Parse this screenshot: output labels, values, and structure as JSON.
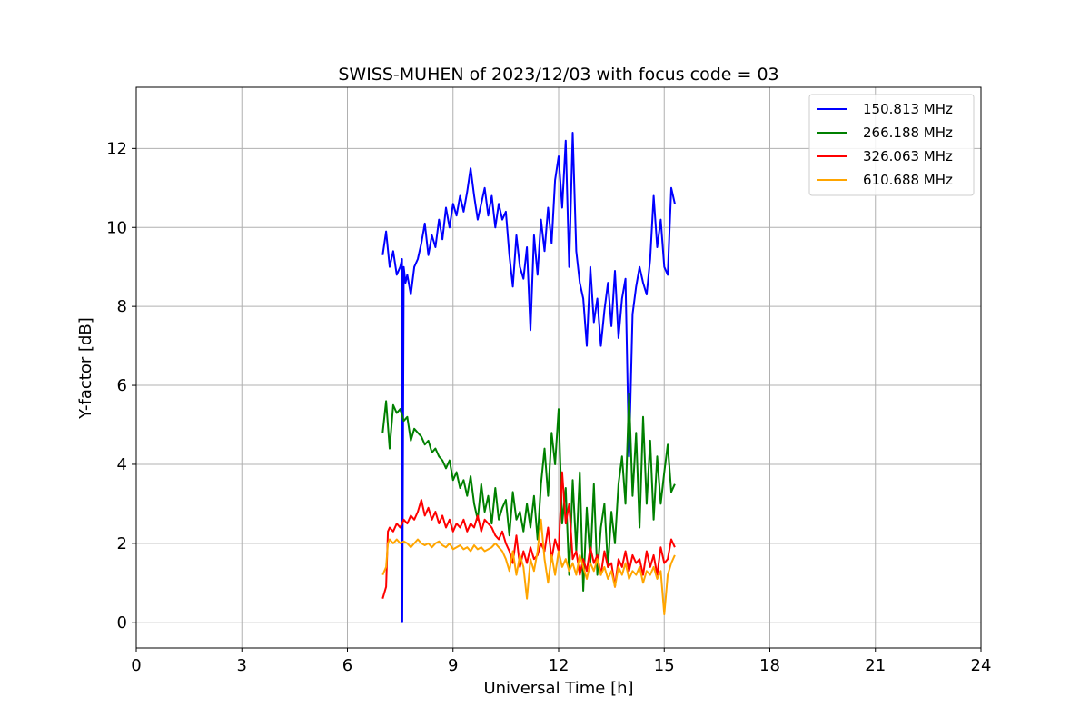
{
  "chart_data": {
    "type": "line",
    "title": "SWISS-MUHEN of 2023/12/03 with focus code = 03",
    "xlabel": "Universal Time [h]",
    "ylabel": "Y-factor [dB]",
    "xlim": [
      0,
      24
    ],
    "ylim": [
      -0.65,
      13.55
    ],
    "xticks": [
      0,
      3,
      6,
      9,
      12,
      15,
      18,
      21,
      24
    ],
    "yticks": [
      0,
      2,
      4,
      6,
      8,
      10,
      12
    ],
    "grid": true,
    "legend_position": "top-right",
    "series": [
      {
        "name": "150.813 MHz",
        "color": "#0000ff",
        "x": [
          7.0,
          7.1,
          7.2,
          7.3,
          7.4,
          7.5,
          7.55,
          7.56,
          7.6,
          7.65,
          7.7,
          7.8,
          7.9,
          8.0,
          8.1,
          8.2,
          8.3,
          8.4,
          8.5,
          8.6,
          8.7,
          8.8,
          8.9,
          9.0,
          9.1,
          9.2,
          9.3,
          9.4,
          9.5,
          9.6,
          9.7,
          9.8,
          9.9,
          10.0,
          10.1,
          10.2,
          10.3,
          10.4,
          10.5,
          10.6,
          10.7,
          10.8,
          10.9,
          11.0,
          11.1,
          11.2,
          11.3,
          11.4,
          11.5,
          11.6,
          11.7,
          11.8,
          11.9,
          12.0,
          12.1,
          12.2,
          12.3,
          12.4,
          12.5,
          12.6,
          12.7,
          12.8,
          12.9,
          13.0,
          13.1,
          13.2,
          13.3,
          13.4,
          13.5,
          13.6,
          13.7,
          13.8,
          13.9,
          14.0,
          14.1,
          14.2,
          14.3,
          14.4,
          14.5,
          14.6,
          14.7,
          14.8,
          14.9,
          15.0,
          15.1,
          15.2,
          15.3
        ],
        "y": [
          9.3,
          9.9,
          9.0,
          9.4,
          8.8,
          9.0,
          9.2,
          0.0,
          9.0,
          8.6,
          8.8,
          8.3,
          9.0,
          9.2,
          9.6,
          10.1,
          9.3,
          9.8,
          9.5,
          10.2,
          9.7,
          10.5,
          10.0,
          10.6,
          10.3,
          10.8,
          10.4,
          10.9,
          11.5,
          10.8,
          10.2,
          10.6,
          11.0,
          10.3,
          10.8,
          10.0,
          10.6,
          10.2,
          10.4,
          9.3,
          8.5,
          9.8,
          9.0,
          8.7,
          9.5,
          7.4,
          9.8,
          8.8,
          10.2,
          9.4,
          10.5,
          9.6,
          11.2,
          11.8,
          10.5,
          12.2,
          9.0,
          12.4,
          9.4,
          8.6,
          8.2,
          7.0,
          9.0,
          7.6,
          8.2,
          7.0,
          7.9,
          8.6,
          7.5,
          8.9,
          7.2,
          8.2,
          8.7,
          4.2,
          7.8,
          8.5,
          9.0,
          8.6,
          8.3,
          9.2,
          10.8,
          9.5,
          10.2,
          9.0,
          8.8,
          11.0,
          10.6
        ]
      },
      {
        "name": "266.188 MHz",
        "color": "#008000",
        "x": [
          7.0,
          7.1,
          7.2,
          7.3,
          7.4,
          7.5,
          7.6,
          7.7,
          7.8,
          7.9,
          8.0,
          8.1,
          8.2,
          8.3,
          8.4,
          8.5,
          8.6,
          8.7,
          8.8,
          8.9,
          9.0,
          9.1,
          9.2,
          9.3,
          9.4,
          9.5,
          9.6,
          9.7,
          9.8,
          9.9,
          10.0,
          10.1,
          10.2,
          10.3,
          10.4,
          10.5,
          10.6,
          10.7,
          10.8,
          10.9,
          11.0,
          11.1,
          11.2,
          11.3,
          11.4,
          11.5,
          11.6,
          11.7,
          11.8,
          11.9,
          12.0,
          12.1,
          12.2,
          12.3,
          12.4,
          12.5,
          12.6,
          12.7,
          12.8,
          12.9,
          13.0,
          13.1,
          13.2,
          13.3,
          13.4,
          13.5,
          13.6,
          13.7,
          13.8,
          13.9,
          14.0,
          14.1,
          14.2,
          14.3,
          14.4,
          14.5,
          14.6,
          14.7,
          14.8,
          14.9,
          15.0,
          15.1,
          15.2,
          15.3
        ],
        "y": [
          4.8,
          5.6,
          4.4,
          5.5,
          5.3,
          5.4,
          5.1,
          5.2,
          4.6,
          4.9,
          4.8,
          4.7,
          4.5,
          4.6,
          4.3,
          4.4,
          4.2,
          4.1,
          3.9,
          4.1,
          3.6,
          3.8,
          3.4,
          3.6,
          3.2,
          3.7,
          3.0,
          2.6,
          3.5,
          2.8,
          3.2,
          2.5,
          3.4,
          2.6,
          2.9,
          3.1,
          2.2,
          3.3,
          2.6,
          2.8,
          2.3,
          3.0,
          2.4,
          3.2,
          2.1,
          3.5,
          4.4,
          3.2,
          4.8,
          4.0,
          5.4,
          2.5,
          3.4,
          1.2,
          3.6,
          1.8,
          3.8,
          0.8,
          2.9,
          1.5,
          3.5,
          1.2,
          2.4,
          3.0,
          1.4,
          2.8,
          2.0,
          3.5,
          4.2,
          3.0,
          5.8,
          3.2,
          4.8,
          2.4,
          5.2,
          3.0,
          4.6,
          2.6,
          4.2,
          3.0,
          3.8,
          4.5,
          3.3,
          3.5
        ]
      },
      {
        "name": "326.063 MHz",
        "color": "#ff0000",
        "x": [
          7.0,
          7.1,
          7.15,
          7.2,
          7.3,
          7.4,
          7.5,
          7.6,
          7.7,
          7.8,
          7.9,
          8.0,
          8.1,
          8.2,
          8.3,
          8.4,
          8.5,
          8.6,
          8.7,
          8.8,
          8.9,
          9.0,
          9.1,
          9.2,
          9.3,
          9.4,
          9.5,
          9.6,
          9.7,
          9.8,
          9.9,
          10.0,
          10.1,
          10.2,
          10.3,
          10.4,
          10.5,
          10.6,
          10.7,
          10.8,
          10.9,
          11.0,
          11.1,
          11.2,
          11.3,
          11.4,
          11.5,
          11.6,
          11.7,
          11.8,
          11.9,
          12.0,
          12.1,
          12.2,
          12.3,
          12.4,
          12.5,
          12.6,
          12.7,
          12.8,
          12.9,
          13.0,
          13.1,
          13.2,
          13.3,
          13.4,
          13.5,
          13.6,
          13.7,
          13.8,
          13.9,
          14.0,
          14.1,
          14.2,
          14.3,
          14.4,
          14.5,
          14.6,
          14.7,
          14.8,
          14.9,
          15.0,
          15.1,
          15.2,
          15.3
        ],
        "y": [
          0.6,
          0.9,
          2.3,
          2.4,
          2.3,
          2.5,
          2.4,
          2.6,
          2.5,
          2.7,
          2.6,
          2.8,
          3.1,
          2.7,
          2.9,
          2.6,
          2.8,
          2.5,
          2.7,
          2.4,
          2.6,
          2.3,
          2.5,
          2.4,
          2.6,
          2.3,
          2.5,
          2.4,
          2.7,
          2.3,
          2.6,
          2.5,
          2.4,
          2.2,
          2.1,
          2.3,
          2.0,
          1.8,
          1.5,
          2.2,
          1.4,
          1.8,
          1.5,
          1.9,
          1.6,
          1.7,
          2.0,
          1.8,
          2.4,
          1.6,
          2.1,
          1.8,
          3.8,
          2.5,
          3.0,
          1.6,
          1.8,
          1.2,
          1.6,
          1.3,
          1.9,
          1.5,
          1.7,
          1.2,
          1.8,
          1.4,
          1.5,
          0.9,
          1.6,
          1.4,
          1.8,
          1.3,
          1.7,
          1.5,
          1.6,
          1.2,
          1.8,
          1.4,
          1.7,
          1.2,
          1.9,
          1.5,
          1.6,
          2.1,
          1.9
        ]
      },
      {
        "name": "610.688 MHz",
        "color": "#ffa500",
        "x": [
          7.0,
          7.1,
          7.15,
          7.2,
          7.3,
          7.4,
          7.5,
          7.6,
          7.7,
          7.8,
          7.9,
          8.0,
          8.1,
          8.2,
          8.3,
          8.4,
          8.5,
          8.6,
          8.7,
          8.8,
          8.9,
          9.0,
          9.1,
          9.2,
          9.3,
          9.4,
          9.5,
          9.6,
          9.7,
          9.8,
          9.9,
          10.0,
          10.1,
          10.2,
          10.3,
          10.4,
          10.5,
          10.6,
          10.7,
          10.8,
          10.9,
          11.0,
          11.1,
          11.2,
          11.3,
          11.4,
          11.5,
          11.6,
          11.7,
          11.8,
          11.9,
          12.0,
          12.1,
          12.2,
          12.3,
          12.4,
          12.5,
          12.6,
          12.7,
          12.8,
          12.9,
          13.0,
          13.1,
          13.2,
          13.3,
          13.4,
          13.5,
          13.6,
          13.7,
          13.8,
          13.9,
          14.0,
          14.1,
          14.2,
          14.3,
          14.4,
          14.5,
          14.6,
          14.7,
          14.8,
          14.9,
          15.0,
          15.1,
          15.2,
          15.3
        ],
        "y": [
          1.2,
          1.4,
          2.0,
          2.1,
          2.0,
          2.1,
          2.0,
          2.05,
          2.0,
          1.9,
          2.0,
          2.1,
          2.0,
          1.95,
          2.0,
          1.9,
          2.0,
          2.05,
          1.95,
          1.9,
          2.0,
          1.85,
          1.9,
          1.95,
          1.85,
          1.9,
          1.8,
          1.95,
          1.85,
          1.9,
          1.8,
          1.85,
          1.9,
          2.0,
          1.9,
          1.8,
          1.6,
          1.3,
          1.8,
          1.2,
          1.7,
          1.4,
          0.6,
          1.6,
          1.3,
          1.8,
          2.6,
          1.6,
          1.0,
          1.7,
          1.2,
          1.8,
          1.4,
          1.6,
          1.3,
          1.5,
          1.2,
          1.7,
          1.4,
          1.1,
          1.5,
          1.3,
          1.6,
          1.2,
          1.4,
          1.1,
          1.3,
          0.9,
          1.4,
          1.2,
          1.5,
          1.1,
          1.3,
          1.2,
          1.4,
          1.0,
          1.3,
          1.2,
          1.4,
          1.1,
          1.3,
          0.2,
          1.2,
          1.5,
          1.7
        ]
      }
    ]
  }
}
